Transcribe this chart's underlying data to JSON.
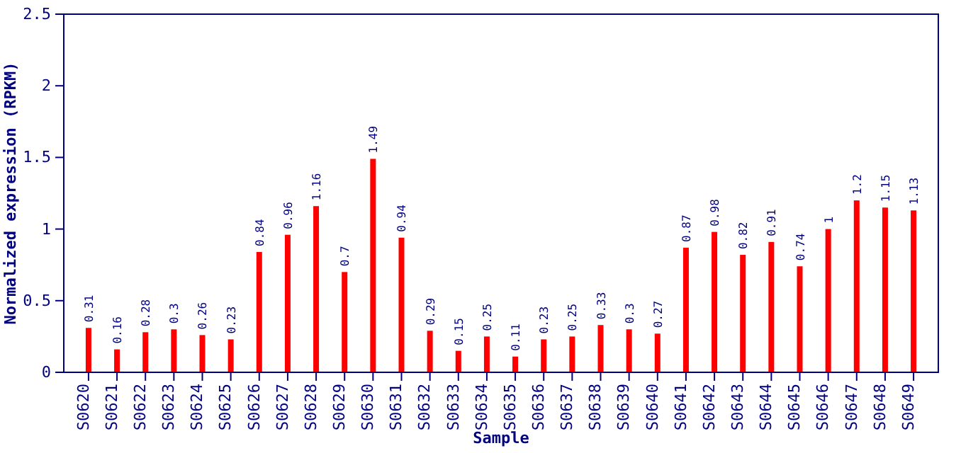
{
  "chart_data": {
    "type": "bar",
    "xlabel": "Sample",
    "ylabel": "Normalized expression (RPKM)",
    "categories": [
      "S0620",
      "S0621",
      "S0622",
      "S0623",
      "S0624",
      "S0625",
      "S0626",
      "S0627",
      "S0628",
      "S0629",
      "S0630",
      "S0631",
      "S0632",
      "S0633",
      "S0634",
      "S0635",
      "S0636",
      "S0637",
      "S0638",
      "S0639",
      "S0640",
      "S0641",
      "S0642",
      "S0643",
      "S0644",
      "S0645",
      "S0646",
      "S0647",
      "S0648",
      "S0649"
    ],
    "values": [
      0.31,
      0.16,
      0.28,
      0.3,
      0.26,
      0.23,
      0.84,
      0.96,
      1.16,
      0.7,
      1.49,
      0.94,
      0.29,
      0.15,
      0.25,
      0.11,
      0.23,
      0.25,
      0.33,
      0.3,
      0.27,
      0.87,
      0.98,
      0.82,
      0.91,
      0.74,
      1,
      1.2,
      1.15,
      1.13
    ],
    "color": "#ff0000",
    "ylim": [
      0,
      2.5
    ],
    "yticks": [
      0,
      {
        "value": 0.5,
        "label": "0.5"
      },
      1,
      {
        "value": 1.5,
        "label": "1.5"
      },
      2,
      {
        "value": 2.5,
        "label": "2.5"
      }
    ],
    "data_labels": true,
    "grid": false
  }
}
